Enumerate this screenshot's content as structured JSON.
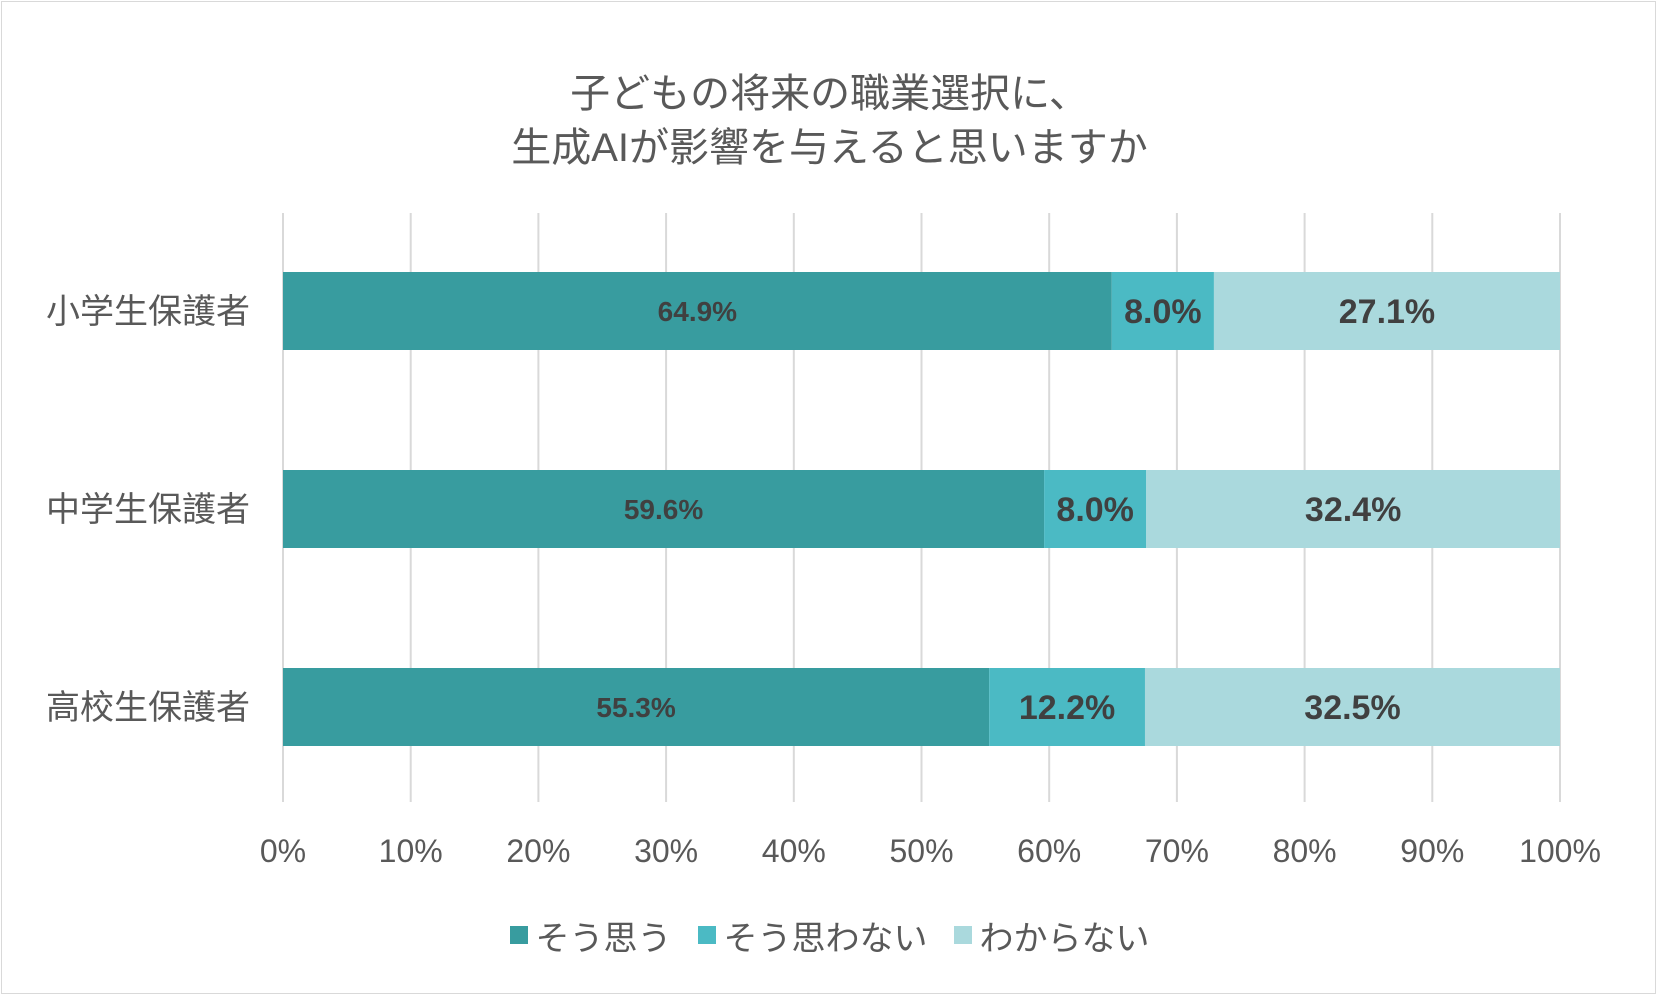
{
  "chart_data": {
    "type": "bar",
    "orientation": "horizontal",
    "stacked": "percent",
    "title_lines": [
      "子どもの将来の職業選択に、",
      "生成AIが影響を与えると思いますか"
    ],
    "categories": [
      "小学生保護者",
      "中学生保護者",
      "高校生保護者"
    ],
    "series": [
      {
        "name": "そう思う",
        "values": [
          64.9,
          59.6,
          55.3
        ],
        "labels": [
          "64.9%",
          "59.6%",
          "55.3%"
        ],
        "color": "#389c9f"
      },
      {
        "name": "そう思わない",
        "values": [
          8.0,
          8.0,
          12.2
        ],
        "labels": [
          "8.0%",
          "8.0%",
          "12.2%"
        ],
        "color": "#4bbac4"
      },
      {
        "name": "わからない",
        "values": [
          27.1,
          32.4,
          32.5
        ],
        "labels": [
          "27.1%",
          "32.4%",
          "32.5%"
        ],
        "color": "#aad9dd"
      }
    ],
    "x_ticks": [
      "0%",
      "10%",
      "20%",
      "30%",
      "40%",
      "50%",
      "60%",
      "70%",
      "80%",
      "90%",
      "100%"
    ],
    "xlim": [
      0,
      100
    ],
    "grid": true,
    "legend_position": "bottom",
    "label_color": "#404040",
    "grid_color": "#d9d9d9"
  }
}
